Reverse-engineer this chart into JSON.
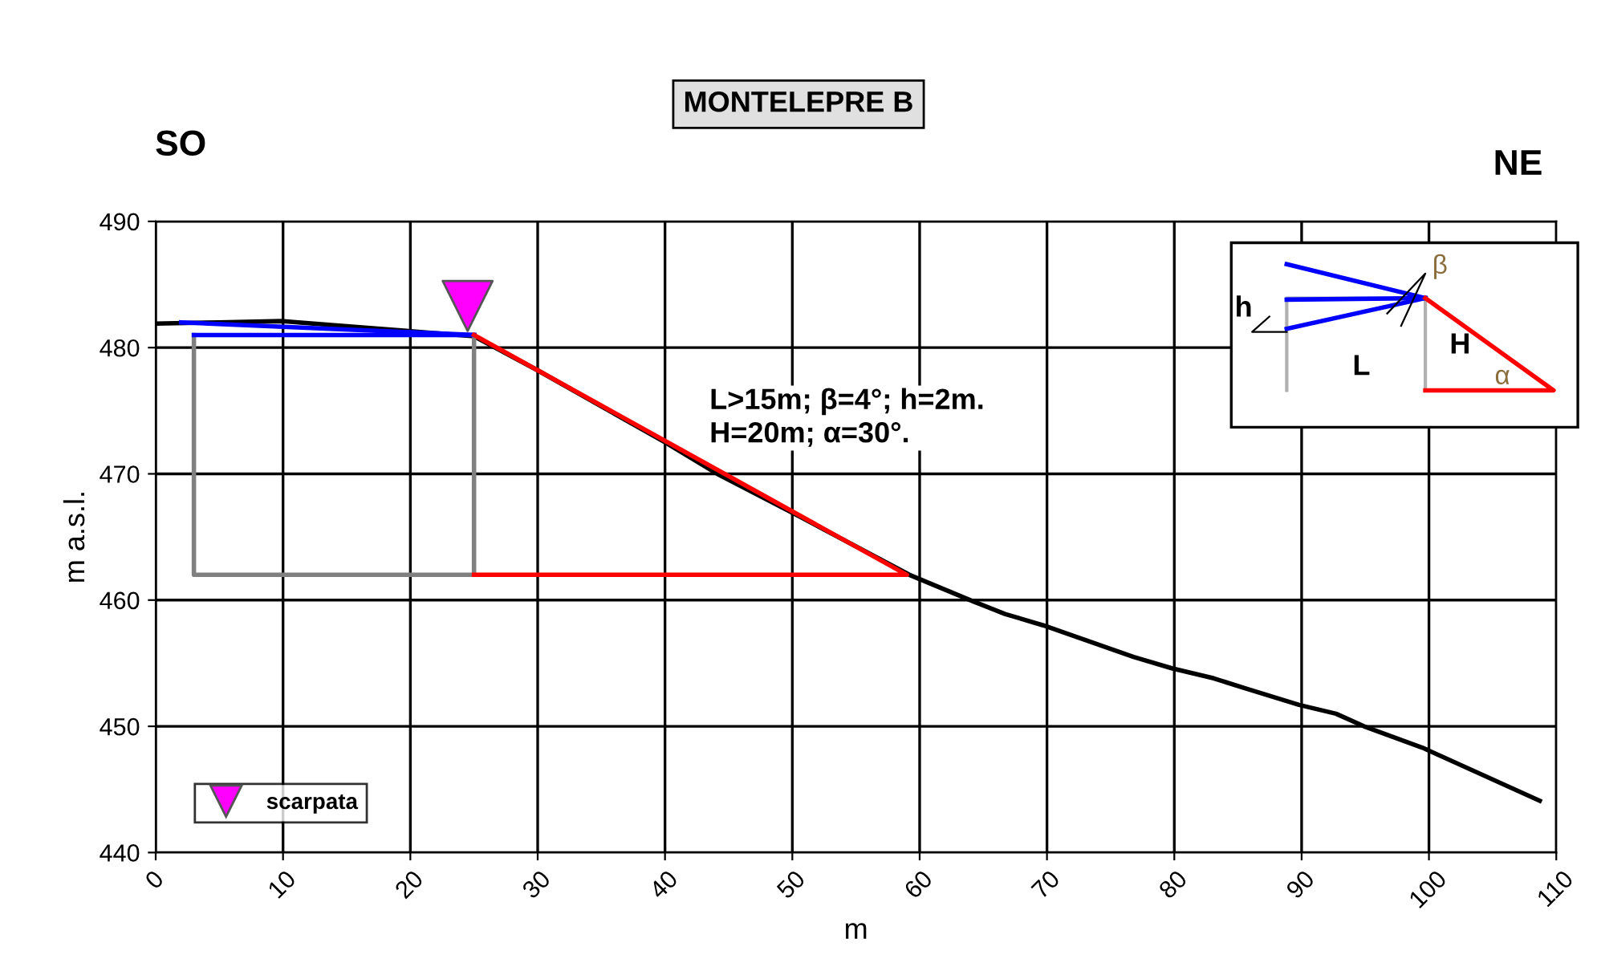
{
  "chart_data": {
    "type": "line",
    "title": "MONTELEPRE B",
    "xlabel": "m",
    "ylabel": "m a.s.l.",
    "xlim": [
      0,
      110
    ],
    "xticks": [
      0,
      10,
      20,
      30,
      40,
      50,
      60,
      70,
      80,
      90,
      100,
      110
    ],
    "ylim": [
      440,
      490
    ],
    "yticks": [
      440,
      450,
      460,
      470,
      480,
      490
    ],
    "grid": true,
    "legend": "bottom left",
    "series": [
      {
        "color": "#000000",
        "x": [
          0,
          5,
          10,
          15,
          20,
          25,
          30,
          40,
          44.1,
          50.8,
          59.2,
          64.2,
          66.7,
          69.7,
          76.8,
          79.8,
          83.1,
          85.6,
          89.8,
          92.7,
          94.9,
          99.5,
          108.7
        ],
        "values": [
          481.9,
          482,
          482.1,
          481.7,
          481.3,
          480.9,
          478.2,
          472.5,
          470.0,
          466.5,
          462.0,
          459.9,
          458.9,
          458.0,
          455.5,
          454.6,
          453.8,
          453.0,
          451.7,
          451.0,
          450.0,
          448.3,
          444.1
        ]
      },
      {
        "color": "#808080",
        "x": [
          3,
          3,
          25,
          25
        ],
        "values": [
          481,
          462,
          462,
          481
        ]
      },
      {
        "color": "#0000ff",
        "x": [
          2,
          25
        ],
        "values": [
          482,
          481
        ]
      },
      {
        "color": "#0000ff",
        "x": [
          3,
          25
        ],
        "values": [
          481,
          481
        ]
      },
      {
        "color": "#ff0000",
        "x": [
          25,
          59,
          25
        ],
        "values": [
          481,
          462,
          462
        ]
      },
      {
        "type": "scatter",
        "name": "scarpata",
        "color": "#ff00ff",
        "marker": "triangle",
        "x": [
          24.5
        ],
        "values": [
          483.3
        ]
      }
    ],
    "annotations": [
      "SO",
      "NE",
      "L>15m; β=4°; h=2m.\nH=20m; α=30°.",
      "h",
      "β",
      "H",
      "L",
      "α"
    ]
  }
}
